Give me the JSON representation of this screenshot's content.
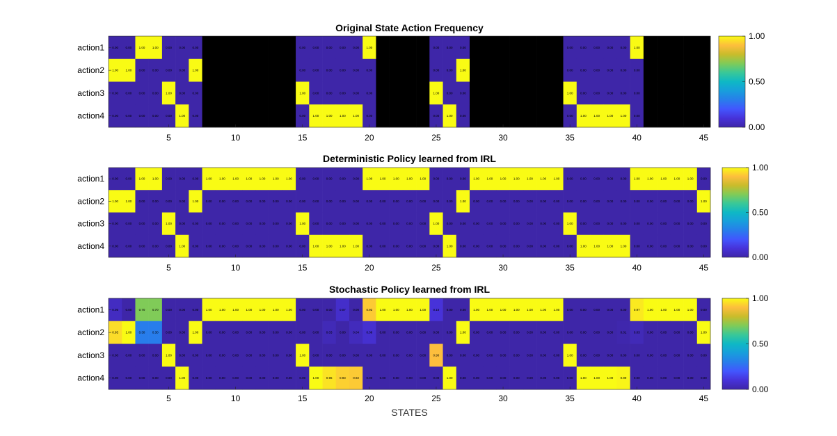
{
  "chart_data": [
    {
      "type": "heatmap",
      "title": "Original State Action Frequency",
      "rows": [
        "action1",
        "action2",
        "action3",
        "action4"
      ],
      "x": [
        1,
        2,
        3,
        4,
        5,
        6,
        7,
        8,
        9,
        10,
        11,
        12,
        13,
        14,
        15,
        16,
        17,
        18,
        19,
        20,
        21,
        22,
        23,
        24,
        25,
        26,
        27,
        28,
        29,
        30,
        31,
        32,
        33,
        34,
        35,
        36,
        37,
        38,
        39,
        40,
        41,
        42,
        43,
        44,
        45
      ],
      "xticks": [
        5,
        10,
        15,
        20,
        25,
        30,
        35,
        40,
        45
      ],
      "colorbar_ticks": [
        "0.00",
        "0.50",
        "1.00"
      ],
      "colormap": "parula",
      "missing_color": "#000000",
      "values": [
        [
          0,
          0,
          1,
          1,
          0,
          0,
          0,
          null,
          null,
          null,
          null,
          null,
          null,
          null,
          0,
          0,
          0,
          0,
          0,
          1,
          null,
          null,
          null,
          null,
          0,
          0,
          0,
          null,
          null,
          null,
          null,
          null,
          null,
          null,
          0,
          0,
          0,
          0,
          0,
          1,
          null,
          null,
          null,
          null,
          null
        ],
        [
          1,
          1,
          0,
          0,
          0,
          0,
          1,
          null,
          null,
          null,
          null,
          null,
          null,
          null,
          0,
          0,
          0,
          0,
          0,
          0,
          null,
          null,
          null,
          null,
          0,
          0,
          1,
          null,
          null,
          null,
          null,
          null,
          null,
          null,
          0,
          0,
          0,
          0,
          0,
          0,
          null,
          null,
          null,
          null,
          null
        ],
        [
          0,
          0,
          0,
          0,
          1,
          0,
          0,
          null,
          null,
          null,
          null,
          null,
          null,
          null,
          1,
          0,
          0,
          0,
          0,
          0,
          null,
          null,
          null,
          null,
          1,
          0,
          0,
          null,
          null,
          null,
          null,
          null,
          null,
          null,
          1,
          0,
          0,
          0,
          0,
          0,
          null,
          null,
          null,
          null,
          null
        ],
        [
          0,
          0,
          0,
          0,
          0,
          1,
          0,
          null,
          null,
          null,
          null,
          null,
          null,
          null,
          0,
          1,
          1,
          1,
          1,
          0,
          null,
          null,
          null,
          null,
          0,
          1,
          0,
          null,
          null,
          null,
          null,
          null,
          null,
          null,
          0,
          1,
          1,
          1,
          1,
          0,
          null,
          null,
          null,
          null,
          null
        ]
      ]
    },
    {
      "type": "heatmap",
      "title": "Deterministic Policy learned from IRL",
      "rows": [
        "action1",
        "action2",
        "action3",
        "action4"
      ],
      "x": [
        1,
        2,
        3,
        4,
        5,
        6,
        7,
        8,
        9,
        10,
        11,
        12,
        13,
        14,
        15,
        16,
        17,
        18,
        19,
        20,
        21,
        22,
        23,
        24,
        25,
        26,
        27,
        28,
        29,
        30,
        31,
        32,
        33,
        34,
        35,
        36,
        37,
        38,
        39,
        40,
        41,
        42,
        43,
        44,
        45
      ],
      "xticks": [
        5,
        10,
        15,
        20,
        25,
        30,
        35,
        40,
        45
      ],
      "colorbar_ticks": [
        "0.00",
        "0.50",
        "1.00"
      ],
      "colormap": "parula",
      "values": [
        [
          0,
          0,
          1,
          1,
          0,
          0,
          0,
          1,
          1,
          1,
          1,
          1,
          1,
          1,
          0,
          0,
          0,
          0,
          0,
          1,
          1,
          1,
          1,
          1,
          0,
          0,
          0,
          1,
          1,
          1,
          1,
          1,
          1,
          1,
          0,
          0,
          0,
          0,
          0,
          1,
          1,
          1,
          1,
          1,
          0
        ],
        [
          1,
          1,
          0,
          0,
          0,
          0,
          1,
          0,
          0,
          0,
          0,
          0,
          0,
          0,
          0,
          0,
          0,
          0,
          0,
          0,
          0,
          0,
          0,
          0,
          0,
          0,
          1,
          0,
          0,
          0,
          0,
          0,
          0,
          0,
          0,
          0,
          0,
          0,
          0,
          0,
          0,
          0,
          0,
          0,
          1
        ],
        [
          0,
          0,
          0,
          0,
          1,
          0,
          0,
          0,
          0,
          0,
          0,
          0,
          0,
          0,
          1,
          0,
          0,
          0,
          0,
          0,
          0,
          0,
          0,
          0,
          1,
          0,
          0,
          0,
          0,
          0,
          0,
          0,
          0,
          0,
          1,
          0,
          0,
          0,
          0,
          0,
          0,
          0,
          0,
          0,
          0
        ],
        [
          0,
          0,
          0,
          0,
          0,
          1,
          0,
          0,
          0,
          0,
          0,
          0,
          0,
          0,
          0,
          1,
          1,
          1,
          1,
          0,
          0,
          0,
          0,
          0,
          0,
          1,
          0,
          0,
          0,
          0,
          0,
          0,
          0,
          0,
          0,
          1,
          1,
          1,
          1,
          0,
          0,
          0,
          0,
          0,
          0
        ]
      ]
    },
    {
      "type": "heatmap",
      "title": "Stochastic Policy learned from IRL",
      "rows": [
        "action1",
        "action2",
        "action3",
        "action4"
      ],
      "x": [
        1,
        2,
        3,
        4,
        5,
        6,
        7,
        8,
        9,
        10,
        11,
        12,
        13,
        14,
        15,
        16,
        17,
        18,
        19,
        20,
        21,
        22,
        23,
        24,
        25,
        26,
        27,
        28,
        29,
        30,
        31,
        32,
        33,
        34,
        35,
        36,
        37,
        38,
        39,
        40,
        41,
        42,
        43,
        44,
        45
      ],
      "xticks": [
        5,
        10,
        15,
        20,
        25,
        30,
        35,
        40,
        45
      ],
      "xlabel": "STATES",
      "colorbar_ticks": [
        "0.00",
        "0.50",
        "1.00"
      ],
      "colormap": "parula",
      "values": [
        [
          0.05,
          0,
          0.7,
          0.7,
          0,
          0,
          0,
          1,
          1,
          1,
          1,
          1,
          1,
          1,
          0,
          0,
          0,
          0.07,
          0,
          0.92,
          1,
          1,
          1,
          1,
          0.1,
          0,
          0,
          1,
          1,
          1,
          1,
          1,
          1,
          1,
          0,
          0,
          0,
          0,
          0,
          0.97,
          1,
          1,
          1,
          1,
          0
        ],
        [
          0.95,
          1,
          0.3,
          0.3,
          0,
          0,
          1,
          0,
          0,
          0,
          0,
          0,
          0,
          0,
          0,
          0,
          0.03,
          0,
          0.04,
          0.08,
          0,
          0,
          0,
          0,
          0,
          0,
          1,
          0,
          0,
          0,
          0,
          0,
          0,
          0,
          0,
          0,
          0,
          0,
          0.01,
          0.03,
          0,
          0,
          0,
          0,
          1
        ],
        [
          0,
          0,
          0,
          0,
          1,
          0,
          0,
          0,
          0,
          0,
          0,
          0,
          0,
          0,
          1,
          0,
          0,
          0,
          0,
          0,
          0,
          0,
          0,
          0,
          0.9,
          0,
          0,
          0,
          0,
          0,
          0,
          0,
          0,
          0,
          1,
          0,
          0,
          0,
          0,
          0,
          0,
          0,
          0,
          0,
          0
        ],
        [
          0,
          0,
          0,
          0,
          0,
          1,
          0,
          0,
          0,
          0,
          0,
          0,
          0,
          0,
          0,
          1,
          0.96,
          0.93,
          0.92,
          0,
          0,
          0,
          0,
          0,
          0,
          1,
          0,
          0,
          0,
          0,
          0,
          0,
          0,
          0,
          0,
          1,
          1,
          1,
          0.99,
          0,
          0,
          0,
          0,
          0,
          0
        ]
      ]
    }
  ]
}
